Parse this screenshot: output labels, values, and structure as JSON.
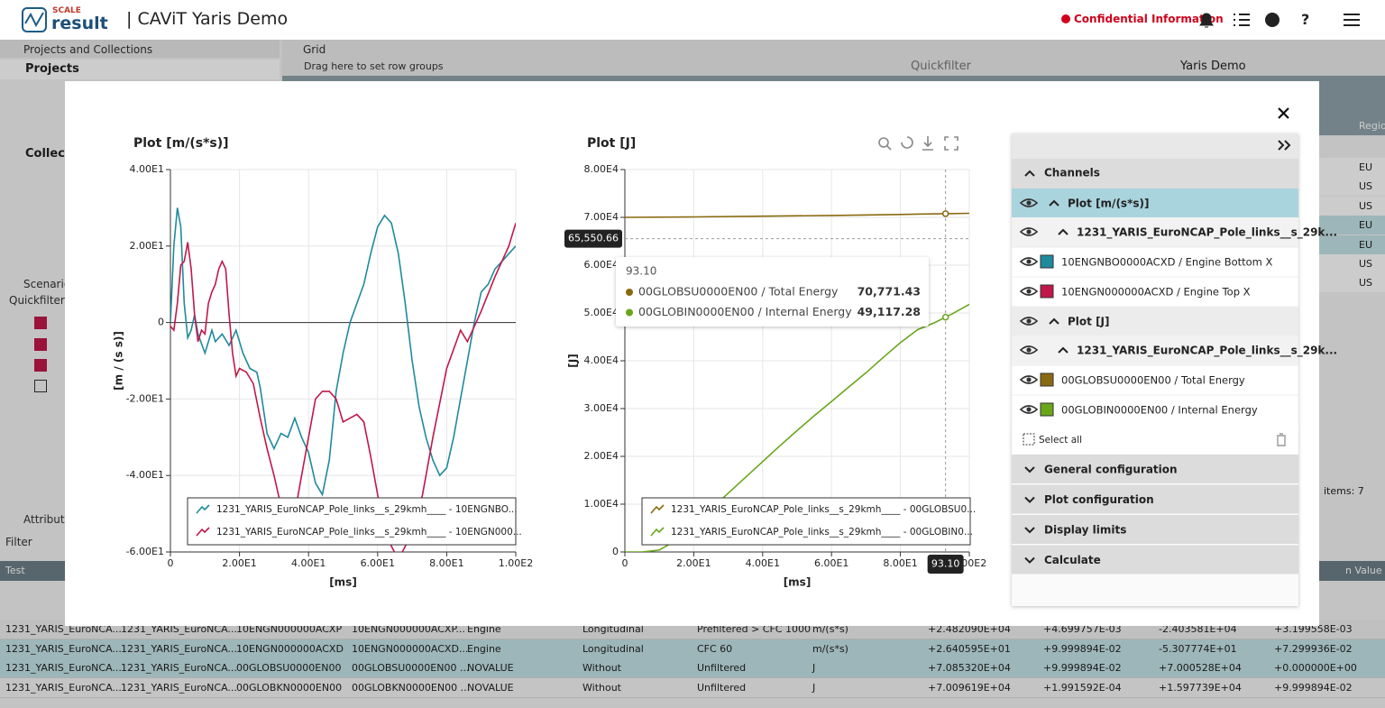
{
  "header": {
    "brand_top": "SCALE",
    "brand": "result",
    "title": "| CAViT Yaris Demo",
    "confidential": "Confidential Information",
    "help_icon": "?"
  },
  "left_panel": {
    "tab": "Projects and Collections",
    "projects": "Projects",
    "collections": "Collecti",
    "scenarios": "Scenarios",
    "quickfilter": "Quickfilter.",
    "attributes": "Attributes",
    "filter": "Filter"
  },
  "grid_toolbar": {
    "tab": "Grid",
    "row_groups": "Drag here to set row groups",
    "quickfilter": "Quickfilter",
    "project": "Yaris Demo"
  },
  "region_column": {
    "header": "Regio",
    "values": [
      "EU",
      "US",
      "US",
      "EU",
      "EU",
      "US",
      "US"
    ],
    "items": "items: 7"
  },
  "bottom_table": {
    "header": "Test",
    "value_header": "n Value",
    "rows": [
      [
        "1231_YARIS_EuroNCA...",
        "1231_YARIS_EuroNCA...",
        "10ENGN000000ACXP",
        "10ENGN000000ACXP...",
        "Engine",
        "Longitudinal",
        "Prefiltered > CFC 1000",
        "m/(s*s)",
        "+2.482090E+04",
        "+4.699757E-03",
        "-2.403581E+04",
        "+3.199558E-03"
      ],
      [
        "1231_YARIS_EuroNCA...",
        "1231_YARIS_EuroNCA...",
        "10ENGN000000ACXD",
        "10ENGN000000ACXD...",
        "Engine",
        "Longitudinal",
        "CFC 60",
        "m/(s*s)",
        "+2.640595E+01",
        "+9.999894E-02",
        "-5.307774E+01",
        "+7.299936E-02"
      ],
      [
        "1231_YARIS_EuroNCA...",
        "1231_YARIS_EuroNCA...",
        "00GLOBSU0000EN00",
        "00GLOBSU0000EN00 ...",
        "NOVALUE",
        "Without",
        "Unfiltered",
        "J",
        "+7.085320E+04",
        "+9.999894E-02",
        "+7.000528E+04",
        "+0.000000E+00"
      ],
      [
        "1231_YARIS_EuroNCA...",
        "1231_YARIS_EuroNCA...",
        "00GLOBKN0000EN00",
        "00GLOBKN0000EN00 ...",
        "NOVALUE",
        "Without",
        "Unfiltered",
        "J",
        "+7.009619E+04",
        "+1.991592E-04",
        "+1.597739E+04",
        "+9.999894E-02"
      ]
    ]
  },
  "side_panel": {
    "channels": "Channels",
    "groups": [
      {
        "plot": "Plot [m/(s*s)]",
        "test": "1231_YARIS_EuroNCAP_Pole_links__s_29k...",
        "channels": [
          "10ENGNBO0000ACXD / Engine Bottom X",
          "10ENGN000000ACXD / Engine Top X"
        ]
      },
      {
        "plot": "Plot [J]",
        "test": "1231_YARIS_EuroNCAP_Pole_links__s_29k...",
        "channels": [
          "00GLOBSU0000EN00 / Total Energy",
          "00GLOBIN0000EN00 / Internal Energy"
        ]
      }
    ],
    "select_all": "Select all",
    "sections": [
      "General configuration",
      "Plot configuration",
      "Display limits",
      "Calculate"
    ]
  },
  "chart_data": [
    {
      "type": "line",
      "title": "Plot [m/(s*s)]",
      "x_label": "[ms]",
      "y_label": "[m / (s s)]",
      "grid": true,
      "xlim": [
        0,
        100
      ],
      "xticks": [
        0,
        {
          "value": 20,
          "label": "2.00E1"
        },
        {
          "value": 40,
          "label": "4.00E1"
        },
        {
          "value": 60,
          "label": "6.00E1"
        },
        {
          "value": 80,
          "label": "8.00E1"
        },
        {
          "value": 100,
          "label": "1.00E2"
        }
      ],
      "ylim": [
        -60,
        40
      ],
      "yticks": [
        {
          "value": -60,
          "label": "-6.00E1"
        },
        {
          "value": -40,
          "label": "-4.00E1"
        },
        {
          "value": -20,
          "label": "-2.00E1"
        },
        0,
        {
          "value": 20,
          "label": "2.00E1"
        },
        {
          "value": 40,
          "label": "4.00E1"
        }
      ],
      "series": [
        {
          "name": "1231_YARIS_EuroNCAP_Pole_links__s_29kmh____ - 10ENGNBO...",
          "color": "#1f8a9c",
          "x": [
            0,
            1,
            2,
            3,
            4,
            5,
            6,
            7,
            8,
            10,
            12,
            13,
            15,
            17,
            19,
            21,
            23,
            25,
            26,
            28,
            30,
            32,
            34,
            36,
            38,
            40,
            42,
            44,
            46,
            48,
            50,
            52,
            54,
            56,
            58,
            60,
            62,
            64,
            66,
            68,
            70,
            72,
            74,
            76,
            78,
            80,
            82,
            84,
            86,
            88,
            90,
            92,
            94,
            96,
            98,
            100
          ],
          "values": [
            0,
            20,
            30,
            25,
            5,
            -4,
            -2,
            2,
            -3,
            -8,
            -2,
            -5,
            -3,
            -6,
            -2,
            -8,
            -12,
            -13,
            -17,
            -29,
            -33,
            -29,
            -30,
            -25,
            -30,
            -34,
            -42,
            -45,
            -36,
            -18,
            -8,
            0,
            5,
            10,
            18,
            25,
            28,
            26,
            18,
            5,
            -10,
            -22,
            -30,
            -36,
            -40,
            -38,
            -30,
            -20,
            -10,
            0,
            8,
            10,
            14,
            16,
            18,
            20
          ]
        },
        {
          "name": "1231_YARIS_EuroNCAP_Pole_links__s_29kmh____ - 10ENGN000...",
          "color": "#c0184a",
          "x": [
            0,
            1,
            2,
            3,
            4,
            5,
            6,
            7,
            8,
            9,
            10,
            11,
            12,
            13,
            14,
            15,
            16,
            17,
            18,
            19,
            20,
            22,
            24,
            26,
            28,
            30,
            32,
            34,
            36,
            38,
            40,
            42,
            44,
            46,
            48,
            50,
            52,
            54,
            56,
            58,
            60,
            62,
            66,
            70,
            73,
            76,
            80,
            84,
            86,
            90,
            94,
            98,
            100
          ],
          "values": [
            -1,
            -2,
            5,
            15,
            16,
            21,
            14,
            2,
            -5,
            -2,
            -3,
            5,
            8,
            10,
            14,
            16,
            14,
            2,
            -8,
            -14,
            -12,
            -13,
            -16,
            -25,
            -33,
            -40,
            -48,
            -55,
            -50,
            -40,
            -30,
            -20,
            -18,
            -18,
            -20,
            -26,
            -25,
            -24,
            -26,
            -35,
            -45,
            -55,
            -62,
            -55,
            -45,
            -30,
            -12,
            -2,
            -5,
            3,
            12,
            20,
            26
          ]
        }
      ]
    },
    {
      "type": "line",
      "title": "Plot [J]",
      "x_label": "[ms]",
      "y_label": "[J]",
      "grid": true,
      "xlim": [
        0,
        100
      ],
      "xticks": [
        0,
        {
          "value": 20,
          "label": "2.00E1"
        },
        {
          "value": 40,
          "label": "4.00E1"
        },
        {
          "value": 60,
          "label": "6.00E1"
        },
        {
          "value": 80,
          "label": "8.00E1"
        },
        {
          "value": 100,
          "label": "1.00E2"
        }
      ],
      "ylim": [
        0,
        80000
      ],
      "yticks": [
        0,
        {
          "value": 10000,
          "label": "1.00E4"
        },
        {
          "value": 20000,
          "label": "2.00E4"
        },
        {
          "value": 30000,
          "label": "3.00E4"
        },
        {
          "value": 40000,
          "label": "4.00E4"
        },
        {
          "value": 50000,
          "label": "5.00E4"
        },
        {
          "value": 60000,
          "label": "6.00E4"
        },
        {
          "value": 70000,
          "label": "7.00E4"
        },
        {
          "value": 80000,
          "label": "8.00E4"
        }
      ],
      "series": [
        {
          "name": "1231_YARIS_EuroNCAP_Pole_links__s_29kmh____ - 00GLOBSU0...",
          "color": "#8a6a10",
          "x": [
            0,
            20,
            40,
            60,
            80,
            93.1,
            100
          ],
          "values": [
            70000,
            70100,
            70250,
            70400,
            70600,
            70771.43,
            70850
          ]
        },
        {
          "name": "1231_YARIS_EuroNCAP_Pole_links__s_29kmh____ - 00GLOBIN0...",
          "color": "#6aa61c",
          "x": [
            0,
            5,
            10,
            15,
            20,
            25,
            30,
            35,
            40,
            45,
            50,
            55,
            60,
            65,
            70,
            75,
            80,
            85,
            90,
            93.1,
            95,
            100
          ],
          "values": [
            0,
            0,
            400,
            2500,
            5500,
            9000,
            12300,
            15600,
            18900,
            22200,
            25400,
            28500,
            31500,
            34500,
            37500,
            40700,
            43800,
            46500,
            48000,
            49117.28,
            49800,
            51800
          ]
        }
      ],
      "crosshair": {
        "x": 93.1,
        "x_label": "93.10",
        "y": 65550.66,
        "y_label": "65,550.66"
      },
      "tooltip": {
        "title": "93.10",
        "rows": [
          {
            "name": "00GLOBSU0000EN00 / Total Energy",
            "value": "70,771.43"
          },
          {
            "name": "00GLOBIN0000EN00 / Internal Energy",
            "value": "49,117.28"
          }
        ]
      }
    }
  ]
}
